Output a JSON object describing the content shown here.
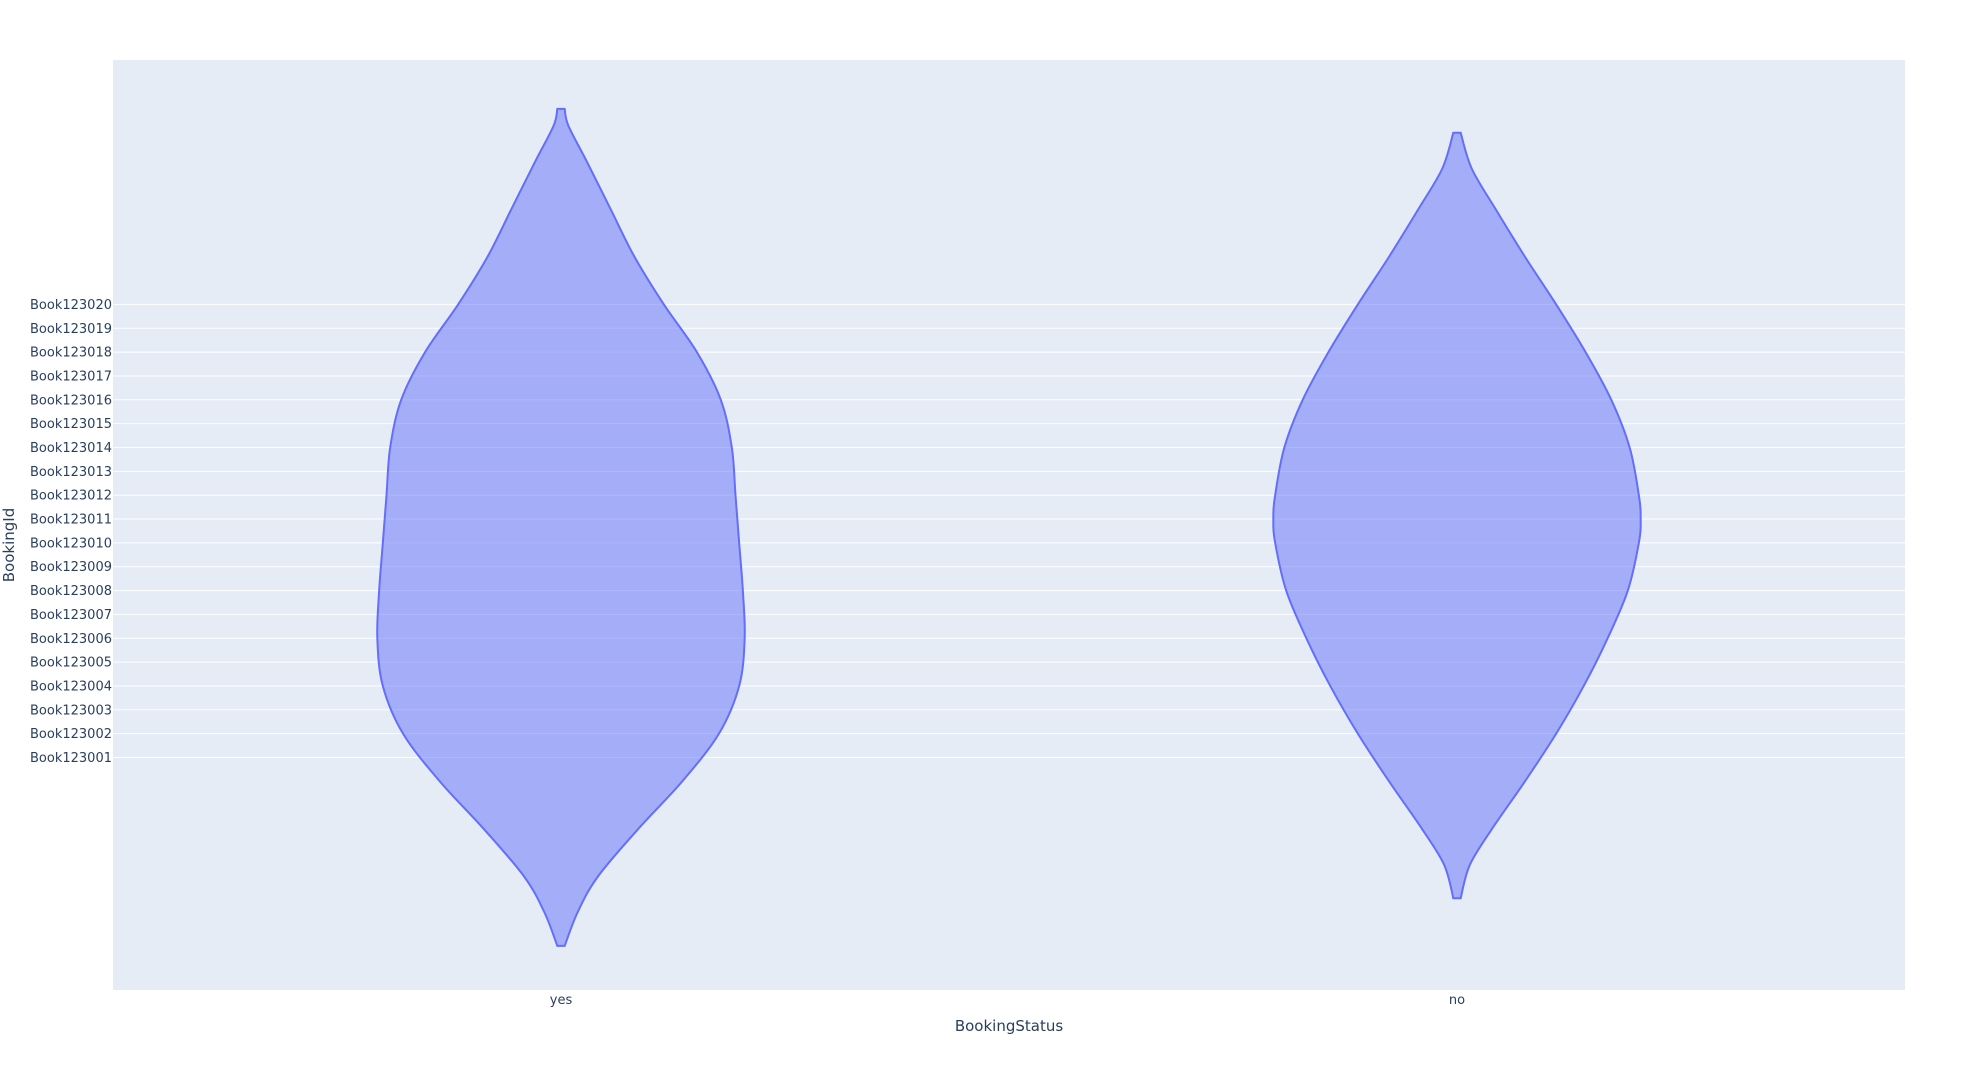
{
  "chart_data": {
    "type": "violin",
    "xlabel": "BookingStatus",
    "ylabel": "BookingId",
    "categories": [
      "yes",
      "no"
    ],
    "y_categories": [
      "Book123001",
      "Book123002",
      "Book123003",
      "Book123004",
      "Book123005",
      "Book123006",
      "Book123007",
      "Book123008",
      "Book123009",
      "Book123010",
      "Book123011",
      "Book123012",
      "Book123013",
      "Book123014",
      "Book123015",
      "Book123016",
      "Book123017",
      "Book123018",
      "Book123019",
      "Book123020"
    ],
    "ylim": [
      -9.75,
      29.25
    ],
    "grid": true,
    "legend": "none",
    "series": [
      {
        "category": "yes",
        "y_min": -7.9,
        "y_max": 27.2,
        "profile": [
          [
            -7.9,
            0.02
          ],
          [
            -6.5,
            0.09
          ],
          [
            -5,
            0.2
          ],
          [
            -3,
            0.42
          ],
          [
            -1,
            0.66
          ],
          [
            1,
            0.86
          ],
          [
            3,
            0.97
          ],
          [
            5,
            1.0
          ],
          [
            7,
            0.99
          ],
          [
            9,
            0.97
          ],
          [
            11,
            0.95
          ],
          [
            13,
            0.93
          ],
          [
            15,
            0.87
          ],
          [
            17,
            0.74
          ],
          [
            19,
            0.56
          ],
          [
            21,
            0.4
          ],
          [
            23,
            0.27
          ],
          [
            25,
            0.14
          ],
          [
            26.5,
            0.04
          ],
          [
            27.2,
            0.02
          ]
        ]
      },
      {
        "category": "no",
        "y_min": -5.9,
        "y_max": 26.2,
        "profile": [
          [
            -5.9,
            0.02
          ],
          [
            -4.5,
            0.07
          ],
          [
            -3,
            0.19
          ],
          [
            -1,
            0.37
          ],
          [
            1,
            0.54
          ],
          [
            3,
            0.69
          ],
          [
            5,
            0.82
          ],
          [
            7,
            0.93
          ],
          [
            9,
            0.99
          ],
          [
            10,
            1.0
          ],
          [
            11,
            0.99
          ],
          [
            13,
            0.94
          ],
          [
            15,
            0.84
          ],
          [
            17,
            0.7
          ],
          [
            19,
            0.54
          ],
          [
            21,
            0.37
          ],
          [
            23,
            0.21
          ],
          [
            24.7,
            0.08
          ],
          [
            26.2,
            0.02
          ]
        ]
      }
    ],
    "fill_color": "#636efa",
    "plot_background": "#e5ecf6"
  }
}
